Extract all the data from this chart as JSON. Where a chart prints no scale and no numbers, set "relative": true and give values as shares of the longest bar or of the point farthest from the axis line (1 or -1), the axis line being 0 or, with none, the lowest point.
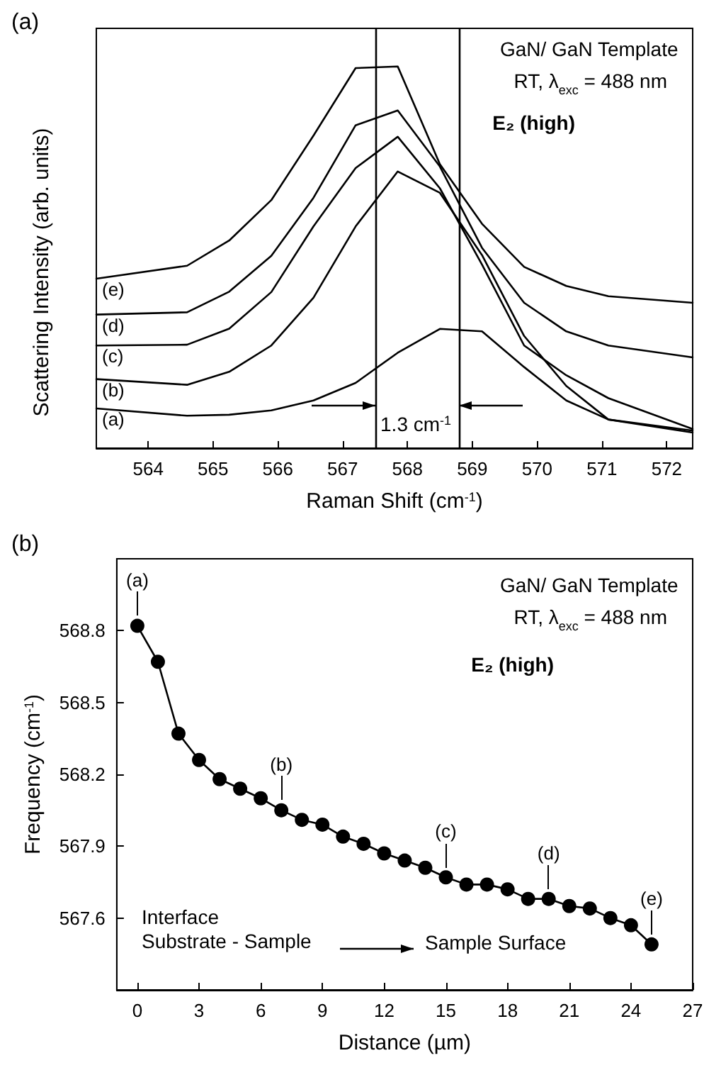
{
  "chart_data": [
    {
      "type": "line",
      "title": "(a)",
      "xlabel": "Raman Shift (cm$^{-1}$)",
      "ylabel": "Scattering Intensity (arb. units)",
      "relative": true,
      "marker": "none",
      "line_style": "solid",
      "x": [
        563.2,
        564.6,
        565.25,
        565.9,
        566.55,
        567.2,
        567.85,
        568.5,
        569.15,
        569.8,
        570.45,
        571.1,
        572.4
      ],
      "xlim": [
        563.2,
        572.4
      ],
      "xticks": [
        564,
        565,
        566,
        567,
        568,
        569,
        570,
        571,
        572
      ],
      "series": [
        {
          "name": "(a)",
          "color": "#000000",
          "values": [
            0.104,
            0.085,
            0.0875,
            0.099,
            0.125,
            0.171,
            0.25,
            0.3125,
            0.306,
            0.2125,
            0.125,
            0.075,
            0.046
          ]
        },
        {
          "name": "(b)",
          "color": "#000000",
          "values": [
            0.181,
            0.166,
            0.2,
            0.269,
            0.394,
            0.581,
            0.725,
            0.669,
            0.506,
            0.294,
            0.163,
            0.075,
            0.041
          ]
        },
        {
          "name": "(c)",
          "color": "#000000",
          "values": [
            0.269,
            0.271,
            0.313,
            0.409,
            0.581,
            0.734,
            0.816,
            0.681,
            0.481,
            0.269,
            0.191,
            0.131,
            0.05
          ]
        },
        {
          "name": "(d)",
          "color": "#000000",
          "values": [
            0.35,
            0.356,
            0.41,
            0.504,
            0.656,
            0.846,
            0.885,
            0.738,
            0.525,
            0.381,
            0.306,
            0.269,
            0.238
          ]
        },
        {
          "name": "(e)",
          "color": "#000000",
          "values": [
            0.444,
            0.478,
            0.544,
            0.65,
            0.819,
            0.996,
            1,
            0.744,
            0.588,
            0.475,
            0.425,
            0.398,
            0.381
          ]
        }
      ],
      "ref_lines": [
        {
          "axis": "x",
          "value": 567.5,
          "color": "#000000"
        },
        {
          "axis": "x",
          "value": 568.8,
          "color": "#000000"
        }
      ],
      "annotations": [
        "GaN/ GaN Template",
        "RT, λ$_{exc}$ = 488 nm",
        "E₂ (high)",
        "1.3 cm$^{-1}$"
      ]
    },
    {
      "type": "line",
      "title": "(b)",
      "xlabel": "Distance (µm)",
      "ylabel": "Frequency (cm$^{-1}$)",
      "marker": "circle",
      "line_style": "solid",
      "x": [
        0,
        1,
        2,
        3,
        4,
        5,
        6,
        7,
        8,
        9,
        10,
        11,
        12,
        13,
        14,
        15,
        16,
        17,
        18,
        19,
        20,
        21,
        22,
        23,
        24,
        25
      ],
      "xlim": [
        -1,
        27
      ],
      "xticks": [
        0,
        3,
        6,
        9,
        12,
        15,
        18,
        21,
        24,
        27
      ],
      "ylim": [
        567.3,
        569.1
      ],
      "yticks": [
        567.6,
        567.9,
        568.2,
        568.5,
        568.8
      ],
      "series": [
        {
          "color": "#000000",
          "values": [
            568.82,
            568.67,
            568.37,
            568.26,
            568.18,
            568.14,
            568.1,
            568.05,
            568.01,
            567.99,
            567.94,
            567.91,
            567.87,
            567.84,
            567.81,
            567.77,
            567.74,
            567.74,
            567.72,
            567.68,
            567.68,
            567.65,
            567.64,
            567.6,
            567.57,
            567.49
          ]
        }
      ],
      "annotations": [
        "GaN/ GaN Template",
        "RT, λ$_{exc}$ = 488 nm",
        "E₂ (high)",
        "Interface\nSubstrate - Sample",
        "Sample Surface",
        {
          "text": "(a)",
          "x": 0,
          "y": 568.82
        },
        {
          "text": "(b)",
          "x": 7,
          "y": 568.05
        },
        {
          "text": "(c)",
          "x": 15,
          "y": 567.77
        },
        {
          "text": "(d)",
          "x": 20,
          "y": 567.68
        },
        {
          "text": "(e)",
          "x": 25,
          "y": 567.49
        }
      ]
    }
  ]
}
